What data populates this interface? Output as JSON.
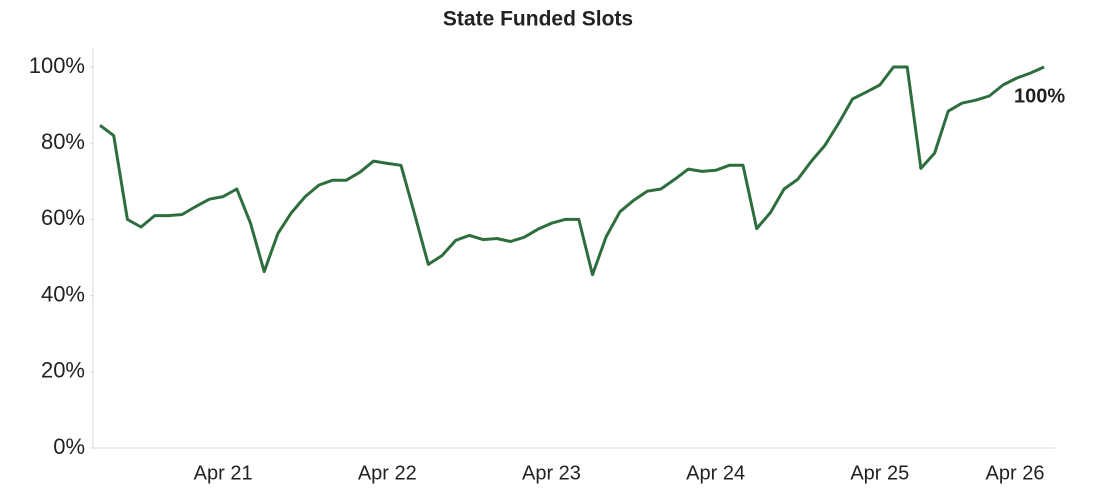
{
  "chart_data": {
    "type": "line",
    "title": "State Funded Slots",
    "categories": [
      null,
      null,
      null,
      null,
      null,
      null,
      null,
      null,
      null,
      "Apr 21",
      null,
      null,
      null,
      null,
      null,
      null,
      null,
      null,
      null,
      null,
      null,
      "Apr 22",
      null,
      null,
      null,
      null,
      null,
      null,
      null,
      null,
      null,
      null,
      null,
      "Apr 23",
      null,
      null,
      null,
      null,
      null,
      null,
      null,
      null,
      null,
      null,
      null,
      "Apr 24",
      null,
      null,
      null,
      null,
      null,
      null,
      null,
      null,
      null,
      null,
      null,
      "Apr 25",
      null,
      null,
      null,
      null,
      null,
      null,
      null,
      null,
      null,
      null,
      null,
      "Apr 26"
    ],
    "series": [
      {
        "name": "State Funded Slots",
        "color": "#2e6e3e",
        "values": [
          84.7,
          82,
          60,
          58,
          61,
          61,
          61.3,
          63.4,
          65.3,
          66,
          68,
          59,
          46.3,
          56.3,
          61.8,
          66,
          69,
          70.3,
          70.3,
          72.4,
          75.3,
          74.7,
          74.2,
          61.3,
          48.2,
          50.5,
          54.5,
          55.8,
          54.7,
          55,
          54.2,
          55.3,
          57.4,
          59,
          60,
          60,
          45.5,
          55.5,
          62,
          65,
          67.4,
          68,
          70.5,
          73.2,
          72.6,
          72.9,
          74.2,
          74.2,
          57.6,
          61.8,
          68,
          70.5,
          75.3,
          79.5,
          85.3,
          91.6,
          93.4,
          95.3,
          100,
          100,
          73.4,
          77.4,
          88.4,
          90.5,
          91.3,
          92.4,
          95.3,
          97.1,
          98.4,
          100
        ],
        "value_labels": [
          null,
          null,
          null,
          null,
          null,
          null,
          null,
          null,
          null,
          null,
          null,
          null,
          null,
          null,
          null,
          null,
          null,
          null,
          null,
          null,
          null,
          null,
          null,
          null,
          null,
          null,
          null,
          null,
          null,
          null,
          null,
          null,
          null,
          null,
          null,
          null,
          null,
          null,
          null,
          null,
          null,
          null,
          null,
          null,
          null,
          null,
          null,
          null,
          null,
          null,
          null,
          null,
          null,
          null,
          null,
          null,
          null,
          null,
          null,
          null,
          null,
          null,
          null,
          null,
          null,
          null,
          null,
          null,
          null,
          "100%"
        ]
      }
    ],
    "ylim": [
      0,
      105
    ],
    "yticks": [
      {
        "value": 0,
        "label": "0%"
      },
      {
        "value": 20,
        "label": "20%"
      },
      {
        "value": 40,
        "label": "40%"
      },
      {
        "value": 60,
        "label": "60%"
      },
      {
        "value": 80,
        "label": "80%"
      },
      {
        "value": 100,
        "label": "100%"
      }
    ],
    "grid": false
  }
}
